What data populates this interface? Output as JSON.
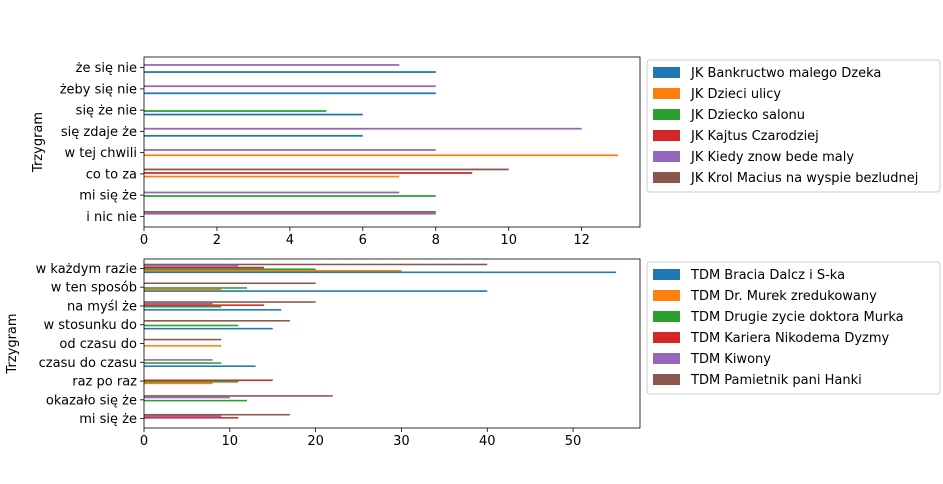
{
  "chart_data": [
    {
      "type": "bar",
      "orientation": "horizontal",
      "ylabel": "Trzygram",
      "xlim": [
        0,
        13.6
      ],
      "xticks": [
        0,
        2,
        4,
        6,
        8,
        10,
        12
      ],
      "categories": [
        "i nic nie",
        "mi się że",
        "co to za",
        "w tej chwili",
        "się zdaje że",
        "się że nie",
        "żeby się nie",
        "że się nie"
      ],
      "legend_position": "right",
      "series": [
        {
          "name": "JK Bankructwo malego Dzeka",
          "color": "#1f77b4",
          "values": [
            0,
            0,
            0,
            0,
            6,
            6,
            8,
            8
          ]
        },
        {
          "name": "JK Dzieci ulicy",
          "color": "#ff7f0e",
          "values": [
            0,
            0,
            7,
            13,
            0,
            0,
            0,
            0
          ]
        },
        {
          "name": "JK Dziecko salonu",
          "color": "#2ca02c",
          "values": [
            0,
            8,
            0,
            0,
            0,
            5,
            0,
            0
          ]
        },
        {
          "name": "JK Kajtus Czarodziej",
          "color": "#d62728",
          "values": [
            0,
            0,
            9,
            0,
            0,
            0,
            0,
            0
          ]
        },
        {
          "name": "JK Kiedy znow bede maly",
          "color": "#9467bd",
          "values": [
            8,
            7,
            0,
            8,
            12,
            0,
            8,
            7
          ]
        },
        {
          "name": "JK Krol Macius na wyspie bezludnej",
          "color": "#8c564b",
          "values": [
            8,
            0,
            10,
            0,
            0,
            0,
            0,
            0
          ]
        }
      ]
    },
    {
      "type": "bar",
      "orientation": "horizontal",
      "ylabel": "Trzygram",
      "xlim": [
        0,
        57.8
      ],
      "xticks": [
        0,
        10,
        20,
        30,
        40,
        50
      ],
      "categories": [
        "mi się że",
        "okazało się że",
        "raz po raz",
        "czasu do czasu",
        "od czasu do",
        "w stosunku do",
        "na myśl że",
        "w ten sposób",
        "w każdym razie"
      ],
      "legend_position": "right",
      "series": [
        {
          "name": "TDM Bracia Dalcz i S-ka",
          "color": "#1f77b4",
          "values": [
            0,
            0,
            0,
            13,
            0,
            15,
            16,
            40,
            55
          ]
        },
        {
          "name": "TDM Dr. Murek zredukowany",
          "color": "#ff7f0e",
          "values": [
            0,
            0,
            8,
            0,
            9,
            0,
            0,
            9,
            30
          ]
        },
        {
          "name": "TDM Drugie zycie doktora Murka",
          "color": "#2ca02c",
          "values": [
            0,
            12,
            11,
            9,
            0,
            11,
            9,
            12,
            20
          ]
        },
        {
          "name": "TDM Kariera Nikodema Dyzmy",
          "color": "#d62728",
          "values": [
            11,
            0,
            15,
            0,
            0,
            0,
            14,
            0,
            14
          ]
        },
        {
          "name": "TDM Kiwony",
          "color": "#9467bd",
          "values": [
            9,
            10,
            0,
            8,
            0,
            0,
            8,
            0,
            11
          ]
        },
        {
          "name": "TDM Pamietnik pani Hanki",
          "color": "#8c564b",
          "values": [
            17,
            22,
            0,
            0,
            9,
            17,
            20,
            20,
            40
          ]
        }
      ]
    }
  ]
}
